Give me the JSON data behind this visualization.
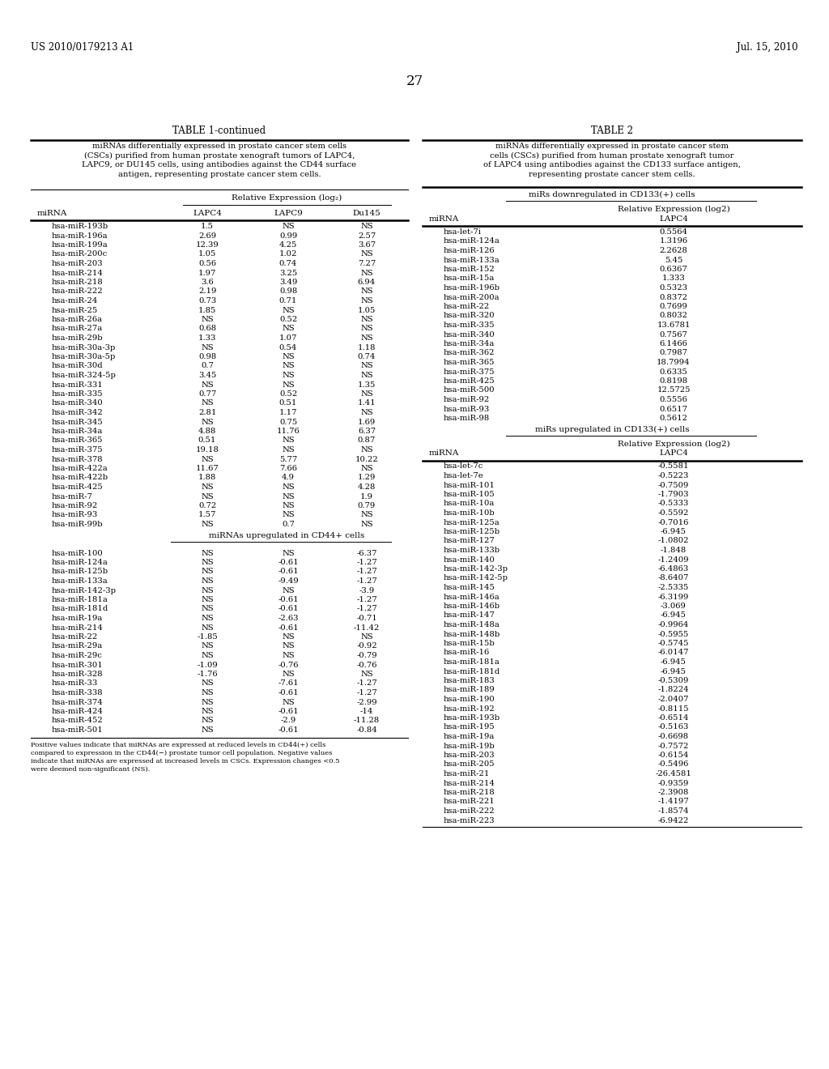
{
  "header_left": "US 2010/0179213 A1",
  "header_right": "Jul. 15, 2010",
  "page_number": "27",
  "table1_title": "TABLE 1-continued",
  "table1_caption": "miRNAs differentially expressed in prostate cancer stem cells\n(CSCs) purified from human prostate xenograft tumors of LAPC4,\nLAPC9, or DU145 cells, using antibodies against the CD44 surface\nantigen, representing prostate cancer stem cells.",
  "table1_subheader": "Relative Expression (log₂)",
  "table1_cols": [
    "miRNA",
    "LAPC4",
    "LAPC9",
    "Du145"
  ],
  "table1_rows": [
    [
      "hsa-miR-193b",
      "1.5",
      "NS",
      "NS"
    ],
    [
      "hsa-miR-196a",
      "2.69",
      "0.99",
      "2.57"
    ],
    [
      "hsa-miR-199a",
      "12.39",
      "4.25",
      "3.67"
    ],
    [
      "hsa-miR-200c",
      "1.05",
      "1.02",
      "NS"
    ],
    [
      "hsa-miR-203",
      "0.56",
      "0.74",
      "7.27"
    ],
    [
      "hsa-miR-214",
      "1.97",
      "3.25",
      "NS"
    ],
    [
      "hsa-miR-218",
      "3.6",
      "3.49",
      "6.94"
    ],
    [
      "hsa-miR-222",
      "2.19",
      "0.98",
      "NS"
    ],
    [
      "hsa-miR-24",
      "0.73",
      "0.71",
      "NS"
    ],
    [
      "hsa-miR-25",
      "1.85",
      "NS",
      "1.05"
    ],
    [
      "hsa-miR-26a",
      "NS",
      "0.52",
      "NS"
    ],
    [
      "hsa-miR-27a",
      "0.68",
      "NS",
      "NS"
    ],
    [
      "hsa-miR-29b",
      "1.33",
      "1.07",
      "NS"
    ],
    [
      "hsa-miR-30a-3p",
      "NS",
      "0.54",
      "1.18"
    ],
    [
      "hsa-miR-30a-5p",
      "0.98",
      "NS",
      "0.74"
    ],
    [
      "hsa-miR-30d",
      "0.7",
      "NS",
      "NS"
    ],
    [
      "hsa-miR-324-5p",
      "3.45",
      "NS",
      "NS"
    ],
    [
      "hsa-miR-331",
      "NS",
      "NS",
      "1.35"
    ],
    [
      "hsa-miR-335",
      "0.77",
      "0.52",
      "NS"
    ],
    [
      "hsa-miR-340",
      "NS",
      "0.51",
      "1.41"
    ],
    [
      "hsa-miR-342",
      "2.81",
      "1.17",
      "NS"
    ],
    [
      "hsa-miR-345",
      "NS",
      "0.75",
      "1.69"
    ],
    [
      "hsa-miR-34a",
      "4.88",
      "11.76",
      "6.37"
    ],
    [
      "hsa-miR-365",
      "0.51",
      "NS",
      "0.87"
    ],
    [
      "hsa-miR-375",
      "19.18",
      "NS",
      "NS"
    ],
    [
      "hsa-miR-378",
      "NS",
      "5.77",
      "10.22"
    ],
    [
      "hsa-miR-422a",
      "11.67",
      "7.66",
      "NS"
    ],
    [
      "hsa-miR-422b",
      "1.88",
      "4.9",
      "1.29"
    ],
    [
      "hsa-miR-425",
      "NS",
      "NS",
      "4.28"
    ],
    [
      "hsa-miR-7",
      "NS",
      "NS",
      "1.9"
    ],
    [
      "hsa-miR-92",
      "0.72",
      "NS",
      "0.79"
    ],
    [
      "hsa-miR-93",
      "1.57",
      "NS",
      "NS"
    ],
    [
      "hsa-miR-99b",
      "NS",
      "0.7",
      "NS"
    ]
  ],
  "table1_section2_header": "miRNAs upregulated in CD44+ cells",
  "table1_rows2": [
    [
      "hsa-miR-100",
      "NS",
      "NS",
      "-6.37"
    ],
    [
      "hsa-miR-124a",
      "NS",
      "-0.61",
      "-1.27"
    ],
    [
      "hsa-miR-125b",
      "NS",
      "-0.61",
      "-1.27"
    ],
    [
      "hsa-miR-133a",
      "NS",
      "-9.49",
      "-1.27"
    ],
    [
      "hsa-miR-142-3p",
      "NS",
      "NS",
      "-3.9"
    ],
    [
      "hsa-miR-181a",
      "NS",
      "-0.61",
      "-1.27"
    ],
    [
      "hsa-miR-181d",
      "NS",
      "-0.61",
      "-1.27"
    ],
    [
      "hsa-miR-19a",
      "NS",
      "-2.63",
      "-0.71"
    ],
    [
      "hsa-miR-214",
      "NS",
      "-0.61",
      "-11.42"
    ],
    [
      "hsa-miR-22",
      "-1.85",
      "NS",
      "NS"
    ],
    [
      "hsa-miR-29a",
      "NS",
      "NS",
      "-0.92"
    ],
    [
      "hsa-miR-29c",
      "NS",
      "NS",
      "-0.79"
    ],
    [
      "hsa-miR-301",
      "-1.09",
      "-0.76",
      "-0.76"
    ],
    [
      "hsa-miR-328",
      "-1.76",
      "NS",
      "NS"
    ],
    [
      "hsa-miR-33",
      "NS",
      "-7.61",
      "-1.27"
    ],
    [
      "hsa-miR-338",
      "NS",
      "-0.61",
      "-1.27"
    ],
    [
      "hsa-miR-374",
      "NS",
      "NS",
      "-2.99"
    ],
    [
      "hsa-miR-424",
      "NS",
      "-0.61",
      "-14"
    ],
    [
      "hsa-miR-452",
      "NS",
      "-2.9",
      "-11.28"
    ],
    [
      "hsa-miR-501",
      "NS",
      "-0.61",
      "-0.84"
    ]
  ],
  "table1_footnote": "Positive values indicate that miRNAs are expressed at reduced levels in CD44(+) cells\ncompared to expression in the CD44(−) prostate tumor cell population. Negative values\nindicate that miRNAs are expressed at increased levels in CSCs. Expression changes <0.5\nwere deemed non-significant (NS).",
  "table2_title": "TABLE 2",
  "table2_caption": "miRNAs differentially expressed in prostate cancer stem\ncells (CSCs) purified from human prostate xenograft tumor\nof LAPC4 using antibodies against the CD133 surface antigen,\nrepresenting prostate cancer stem cells.",
  "table2_section1": "miRs downregulated in CD133(+) cells",
  "table2_rows1": [
    [
      "hsa-let-7i",
      "0.5564"
    ],
    [
      "hsa-miR-124a",
      "1.3196"
    ],
    [
      "hsa-miR-126",
      "2.2628"
    ],
    [
      "hsa-miR-133a",
      "5.45"
    ],
    [
      "hsa-miR-152",
      "0.6367"
    ],
    [
      "hsa-miR-15a",
      "1.333"
    ],
    [
      "hsa-miR-196b",
      "0.5323"
    ],
    [
      "hsa-miR-200a",
      "0.8372"
    ],
    [
      "hsa-miR-22",
      "0.7699"
    ],
    [
      "hsa-miR-320",
      "0.8032"
    ],
    [
      "hsa-miR-335",
      "13.6781"
    ],
    [
      "hsa-miR-340",
      "0.7567"
    ],
    [
      "hsa-miR-34a",
      "6.1466"
    ],
    [
      "hsa-miR-362",
      "0.7987"
    ],
    [
      "hsa-miR-365",
      "18.7994"
    ],
    [
      "hsa-miR-375",
      "0.6335"
    ],
    [
      "hsa-miR-425",
      "0.8198"
    ],
    [
      "hsa-miR-500",
      "12.5725"
    ],
    [
      "hsa-miR-92",
      "0.5556"
    ],
    [
      "hsa-miR-93",
      "0.6517"
    ],
    [
      "hsa-miR-98",
      "0.5612"
    ]
  ],
  "table2_section2": "miRs upregulated in CD133(+) cells",
  "table2_rows2": [
    [
      "hsa-let-7c",
      "-0.5581"
    ],
    [
      "hsa-let-7e",
      "-0.5223"
    ],
    [
      "hsa-miR-101",
      "-0.7509"
    ],
    [
      "hsa-miR-105",
      "-1.7903"
    ],
    [
      "hsa-miR-10a",
      "-0.5333"
    ],
    [
      "hsa-miR-10b",
      "-0.5592"
    ],
    [
      "hsa-miR-125a",
      "-0.7016"
    ],
    [
      "hsa-miR-125b",
      "-6.945"
    ],
    [
      "hsa-miR-127",
      "-1.0802"
    ],
    [
      "hsa-miR-133b",
      "-1.848"
    ],
    [
      "hsa-miR-140",
      "-1.2409"
    ],
    [
      "hsa-miR-142-3p",
      "-6.4863"
    ],
    [
      "hsa-miR-142-5p",
      "-8.6407"
    ],
    [
      "hsa-miR-145",
      "-2.5335"
    ],
    [
      "hsa-miR-146a",
      "-6.3199"
    ],
    [
      "hsa-miR-146b",
      "-3.069"
    ],
    [
      "hsa-miR-147",
      "-6.945"
    ],
    [
      "hsa-miR-148a",
      "-0.9964"
    ],
    [
      "hsa-miR-148b",
      "-0.5955"
    ],
    [
      "hsa-miR-15b",
      "-0.5745"
    ],
    [
      "hsa-miR-16",
      "-6.0147"
    ],
    [
      "hsa-miR-181a",
      "-6.945"
    ],
    [
      "hsa-miR-181d",
      "-6.945"
    ],
    [
      "hsa-miR-183",
      "-0.5309"
    ],
    [
      "hsa-miR-189",
      "-1.8224"
    ],
    [
      "hsa-miR-190",
      "-2.0407"
    ],
    [
      "hsa-miR-192",
      "-0.8115"
    ],
    [
      "hsa-miR-193b",
      "-0.6514"
    ],
    [
      "hsa-miR-195",
      "-0.5163"
    ],
    [
      "hsa-miR-19a",
      "-0.6698"
    ],
    [
      "hsa-miR-19b",
      "-0.7572"
    ],
    [
      "hsa-miR-203",
      "-0.6154"
    ],
    [
      "hsa-miR-205",
      "-0.5496"
    ],
    [
      "hsa-miR-21",
      "-26.4581"
    ],
    [
      "hsa-miR-214",
      "-0.9359"
    ],
    [
      "hsa-miR-218",
      "-2.3908"
    ],
    [
      "hsa-miR-221",
      "-1.4197"
    ],
    [
      "hsa-miR-222",
      "-1.8574"
    ],
    [
      "hsa-miR-223",
      "-6.9422"
    ]
  ]
}
